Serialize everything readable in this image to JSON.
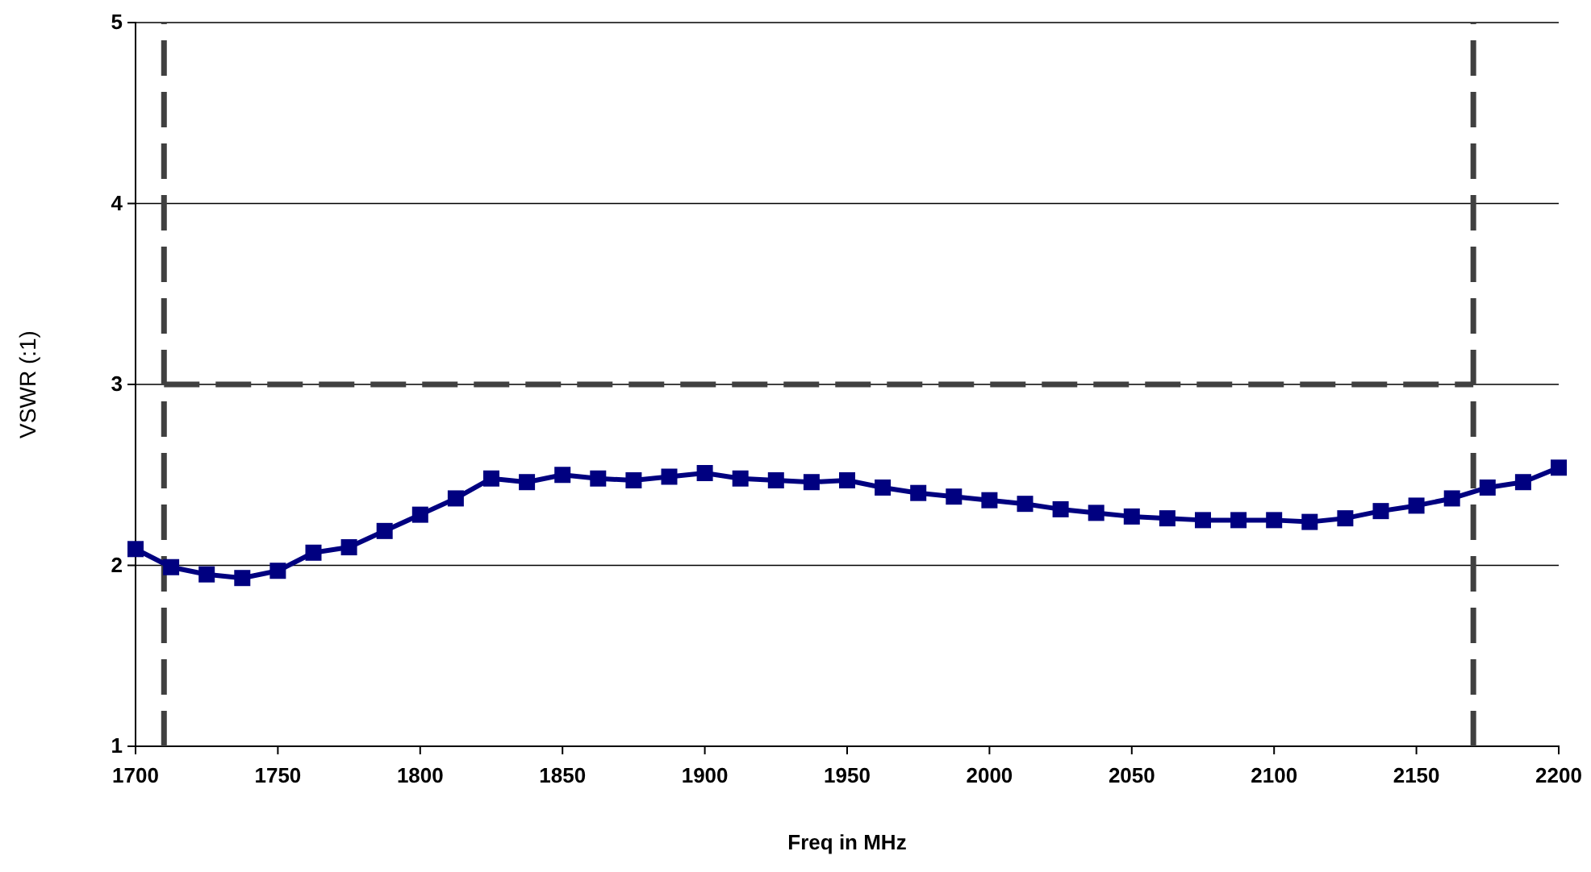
{
  "chart_data": {
    "type": "line",
    "xlabel": "Freq in MHz",
    "ylabel": "VSWR (:1)",
    "xlim": [
      1700,
      2200
    ],
    "xticks": [
      1700,
      1750,
      1800,
      1850,
      1900,
      1950,
      2000,
      2050,
      2100,
      2150,
      2200
    ],
    "ylim": [
      1,
      5
    ],
    "yticks": [
      1,
      2,
      3,
      4,
      5
    ],
    "grid": "y",
    "series": [
      {
        "color": "#000080",
        "marker": "square",
        "line_style": "solid",
        "x": [
          1700,
          1712.5,
          1725,
          1737.5,
          1750,
          1762.5,
          1775,
          1787.5,
          1800,
          1812.5,
          1825,
          1837.5,
          1850,
          1862.5,
          1875,
          1887.5,
          1900,
          1912.5,
          1925,
          1937.5,
          1950,
          1962.5,
          1975,
          1987.5,
          2000,
          2012.5,
          2025,
          2037.5,
          2050,
          2062.5,
          2075,
          2087.5,
          2100,
          2112.5,
          2125,
          2137.5,
          2150,
          2162.5,
          2175,
          2187.5,
          2200
        ],
        "values": [
          2.09,
          1.99,
          1.95,
          1.93,
          1.97,
          2.07,
          2.1,
          2.19,
          2.28,
          2.37,
          2.48,
          2.46,
          2.5,
          2.48,
          2.47,
          2.49,
          2.51,
          2.48,
          2.47,
          2.46,
          2.47,
          2.43,
          2.4,
          2.38,
          2.36,
          2.34,
          2.31,
          2.29,
          2.27,
          2.26,
          2.25,
          2.25,
          2.25,
          2.24,
          2.26,
          2.3,
          2.33,
          2.37,
          2.43,
          2.46,
          2.54
        ]
      },
      {
        "color": "#404040",
        "marker": "none",
        "line_style": "dashed",
        "x": [
          1710,
          2170
        ],
        "values": [
          3,
          3
        ]
      }
    ],
    "ref_lines": [
      {
        "axis": "x",
        "value": 1710,
        "color": "#404040",
        "line_style": "dashed"
      },
      {
        "axis": "x",
        "value": 2170,
        "color": "#404040",
        "line_style": "dashed"
      }
    ]
  }
}
